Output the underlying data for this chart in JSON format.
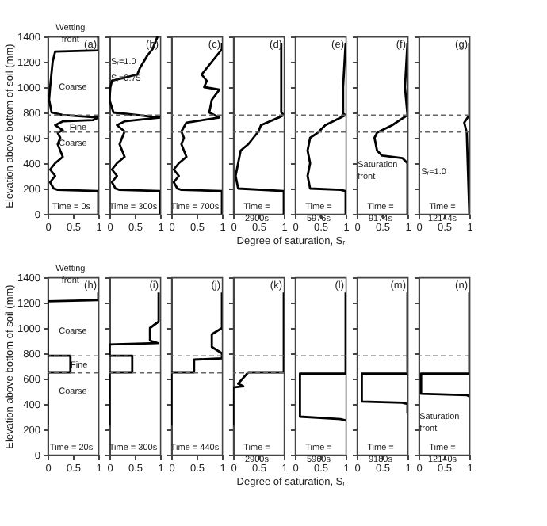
{
  "chart_data": [
    {
      "type": "line",
      "title": "(a)",
      "subtitle": "Wetting\nfront",
      "ylabel": "Elevation above bottom of soil (mm)",
      "xlim": [
        0,
        1
      ],
      "xticks": [
        0,
        0.5,
        1
      ],
      "ylim": [
        0,
        1400
      ],
      "yticks": [
        0,
        200,
        400,
        600,
        800,
        1000,
        1200,
        1400
      ],
      "series": [
        {
          "color": "#000000",
          "x": [
            1,
            1,
            0.15,
            0.1,
            0.05,
            0.03,
            0.08,
            0.3,
            1.0,
            0.9,
            0.3,
            0.15,
            0.3,
            0.2,
            0.25,
            0.2,
            0.3,
            0.15,
            0.05,
            0.15,
            0.05,
            0.12,
            0.2,
            1.0,
            1.0
          ],
          "values": [
            1400,
            1290,
            1280,
            1200,
            1000,
            900,
            800,
            780,
            760,
            740,
            730,
            700,
            660,
            640,
            600,
            550,
            450,
            400,
            350,
            300,
            250,
            200,
            190,
            180,
            0
          ]
        }
      ],
      "ref_lines": [
        {
          "axis": "y",
          "value": 780,
          "color": "#666666",
          "line_style": "dashed"
        },
        {
          "axis": "y",
          "value": 645,
          "color": "#666666",
          "line_style": "dashed"
        }
      ],
      "annotations": [
        "Time = 0s",
        "Coarse",
        "Fine",
        "Coarse"
      ]
    },
    {
      "type": "line",
      "title": "(b)",
      "tick_labels": "x",
      "xlim": [
        0,
        1
      ],
      "xticks": [
        0,
        0.5,
        1
      ],
      "ylim": [
        0,
        1400
      ],
      "yticks": [
        0,
        200,
        400,
        600,
        800,
        1000,
        1200,
        1400
      ],
      "series": [
        {
          "color": "#000000",
          "x": [
            0.95,
            0.85,
            0.75,
            0.6,
            0.55,
            0.05,
            0.02,
            0.0,
            0.08,
            1.0,
            0.3,
            0.15,
            0.3,
            0.25,
            0.2,
            0.3,
            0.15,
            0.05,
            0.15,
            0.05,
            0.12,
            0.2,
            1.0,
            1.0
          ],
          "values": [
            1400,
            1300,
            1250,
            1150,
            1100,
            1050,
            1000,
            900,
            800,
            760,
            730,
            700,
            650,
            600,
            550,
            450,
            400,
            350,
            300,
            250,
            200,
            190,
            180,
            0
          ]
        }
      ],
      "ref_lines": [
        {
          "axis": "y",
          "value": 780,
          "color": "#666666",
          "line_style": "dashed"
        },
        {
          "axis": "y",
          "value": 645,
          "color": "#666666",
          "line_style": "dashed"
        }
      ],
      "annotations": [
        "Time = 300s",
        "Sᵣ=1.0",
        "Sᵣ=0.75"
      ]
    },
    {
      "type": "line",
      "title": "(c)",
      "tick_labels": "x",
      "xlim": [
        0,
        1
      ],
      "xticks": [
        0,
        0.5,
        1
      ],
      "ylim": [
        0,
        1400
      ],
      "yticks": [
        0,
        200,
        400,
        600,
        800,
        1000,
        1200,
        1400
      ],
      "series": [
        {
          "color": "#000000",
          "x": [
            1.0,
            1.0,
            0.8,
            0.6,
            0.7,
            0.65,
            0.95,
            0.8,
            0.75,
            0.95,
            0.3,
            0.2,
            0.25,
            0.2,
            0.3,
            0.15,
            0.05,
            0.15,
            0.05,
            0.12,
            0.2,
            1.0,
            1.0
          ],
          "values": [
            1350,
            1300,
            1200,
            1100,
            1050,
            1000,
            980,
            900,
            800,
            760,
            720,
            650,
            600,
            550,
            450,
            400,
            350,
            300,
            250,
            200,
            190,
            180,
            0
          ]
        }
      ],
      "ref_lines": [
        {
          "axis": "y",
          "value": 780,
          "color": "#666666",
          "line_style": "dashed"
        },
        {
          "axis": "y",
          "value": 645,
          "color": "#666666",
          "line_style": "dashed"
        }
      ],
      "annotations": [
        "Time = 700s"
      ]
    },
    {
      "type": "line",
      "title": "(d)",
      "tick_labels": "x",
      "xlabel": "Degree of saturation, Sᵣ",
      "xlim": [
        0,
        1
      ],
      "xticks": [
        0,
        0.5,
        1
      ],
      "ylim": [
        0,
        1400
      ],
      "yticks": [
        0,
        200,
        400,
        600,
        800,
        1000,
        1200,
        1400
      ],
      "series": [
        {
          "color": "#000000",
          "x": [
            0.95,
            0.95,
            0.95,
            1.0,
            0.9,
            0.55,
            0.5,
            0.4,
            0.3,
            0.15,
            0.1,
            0.05,
            0.1,
            1.0,
            1.0
          ],
          "values": [
            1350,
            1000,
            800,
            780,
            760,
            700,
            650,
            600,
            550,
            500,
            400,
            300,
            200,
            180,
            0
          ]
        }
      ],
      "ref_lines": [
        {
          "axis": "y",
          "value": 780,
          "color": "#666666",
          "line_style": "dashed"
        },
        {
          "axis": "y",
          "value": 645,
          "color": "#666666",
          "line_style": "dashed"
        }
      ],
      "annotations": [
        "Time =\n2900s"
      ]
    },
    {
      "type": "line",
      "title": "(e)",
      "tick_labels": "x",
      "xlim": [
        0,
        1
      ],
      "xticks": [
        0,
        0.5,
        1
      ],
      "ylim": [
        0,
        1400
      ],
      "yticks": [
        0,
        200,
        400,
        600,
        800,
        1000,
        1200,
        1400
      ],
      "series": [
        {
          "color": "#000000",
          "x": [
            1.0,
            0.95,
            0.95,
            1.0,
            0.9,
            0.6,
            0.45,
            0.3,
            0.25,
            0.3,
            0.25,
            0.3,
            0.9,
            1.0,
            1.0
          ],
          "values": [
            1350,
            1000,
            790,
            780,
            760,
            700,
            640,
            600,
            500,
            400,
            300,
            200,
            190,
            180,
            0
          ]
        }
      ],
      "ref_lines": [
        {
          "axis": "y",
          "value": 780,
          "color": "#666666",
          "line_style": "dashed"
        },
        {
          "axis": "y",
          "value": 645,
          "color": "#666666",
          "line_style": "dashed"
        }
      ],
      "annotations": [
        "Time =\n5976s"
      ]
    },
    {
      "type": "line",
      "title": "(f)",
      "tick_labels": "x",
      "xlim": [
        0,
        1
      ],
      "xticks": [
        0,
        0.5,
        1
      ],
      "ylim": [
        0,
        1400
      ],
      "yticks": [
        0,
        200,
        400,
        600,
        800,
        1000,
        1200,
        1400
      ],
      "series": [
        {
          "color": "#000000",
          "x": [
            1.0,
            0.95,
            1.0,
            0.7,
            0.4,
            0.35,
            0.4,
            0.5,
            0.9,
            1.0,
            1.0
          ],
          "values": [
            1350,
            1000,
            780,
            700,
            640,
            600,
            500,
            460,
            440,
            400,
            0
          ]
        }
      ],
      "ref_lines": [
        {
          "axis": "y",
          "value": 780,
          "color": "#666666",
          "line_style": "dashed"
        },
        {
          "axis": "y",
          "value": 645,
          "color": "#666666",
          "line_style": "dashed"
        }
      ],
      "annotations": [
        "Time =\n9174s",
        "Saturation\nfront"
      ]
    },
    {
      "type": "line",
      "title": "(g)",
      "tick_labels": "x",
      "xlim": [
        0,
        1
      ],
      "xticks": [
        0,
        0.5,
        1
      ],
      "ylim": [
        0,
        1400
      ],
      "yticks": [
        0,
        200,
        400,
        600,
        800,
        1000,
        1200,
        1400
      ],
      "series": [
        {
          "color": "#000000",
          "x": [
            1.0,
            1.0,
            0.9,
            0.95,
            1.0
          ],
          "values": [
            1350,
            780,
            720,
            640,
            0
          ]
        }
      ],
      "ref_lines": [
        {
          "axis": "y",
          "value": 780,
          "color": "#666666",
          "line_style": "dashed"
        },
        {
          "axis": "y",
          "value": 645,
          "color": "#666666",
          "line_style": "dashed"
        }
      ],
      "annotations": [
        "Time =\n12144s",
        "Sᵣ=1.0"
      ]
    },
    {
      "type": "line",
      "title": "(h)",
      "subtitle": "Wetting\nfront",
      "ylabel": "Elevation above bottom of soil (mm)",
      "xlim": [
        0,
        1
      ],
      "xticks": [
        0,
        0.5,
        1
      ],
      "ylim": [
        0,
        1400
      ],
      "yticks": [
        0,
        200,
        400,
        600,
        800,
        1000,
        1200,
        1400
      ],
      "series": [
        {
          "color": "#000000",
          "x": [
            1,
            1,
            0,
            0,
            0.45,
            0.45,
            0,
            0
          ],
          "values": [
            1280,
            1220,
            1210,
            780,
            780,
            650,
            650,
            230
          ]
        }
      ],
      "ref_lines": [
        {
          "axis": "y",
          "value": 780,
          "color": "#666666",
          "line_style": "dashed"
        },
        {
          "axis": "y",
          "value": 645,
          "color": "#666666",
          "line_style": "dashed"
        }
      ],
      "annotations": [
        "Time = 20s",
        "Coarse",
        "Fine",
        "Coarse"
      ]
    },
    {
      "type": "line",
      "title": "(i)",
      "tick_labels": "x",
      "xlim": [
        0,
        1
      ],
      "xticks": [
        0,
        0.5,
        1
      ],
      "ylim": [
        0,
        1400
      ],
      "yticks": [
        0,
        200,
        400,
        600,
        800,
        1000,
        1200,
        1400
      ],
      "series": [
        {
          "color": "#000000",
          "x": [
            0.97,
            0.97,
            0.8,
            0.8,
            0.95,
            0,
            0,
            0.45,
            0.45,
            0,
            0
          ],
          "values": [
            1280,
            1050,
            1000,
            900,
            880,
            870,
            780,
            780,
            650,
            650,
            230
          ]
        }
      ],
      "ref_lines": [
        {
          "axis": "y",
          "value": 780,
          "color": "#666666",
          "line_style": "dashed"
        },
        {
          "axis": "y",
          "value": 645,
          "color": "#666666",
          "line_style": "dashed"
        }
      ],
      "annotations": [
        "Time = 300s"
      ]
    },
    {
      "type": "line",
      "title": "(j)",
      "tick_labels": "x",
      "xlim": [
        0,
        1
      ],
      "xticks": [
        0,
        0.5,
        1
      ],
      "ylim": [
        0,
        1400
      ],
      "yticks": [
        0,
        200,
        400,
        600,
        800,
        1000,
        1200,
        1400
      ],
      "series": [
        {
          "color": "#000000",
          "x": [
            1,
            1,
            0.8,
            0.8,
            1.0,
            1,
            0.45,
            0.45,
            0,
            0
          ],
          "values": [
            1280,
            1000,
            950,
            850,
            800,
            760,
            750,
            650,
            650,
            230
          ]
        }
      ],
      "ref_lines": [
        {
          "axis": "y",
          "value": 780,
          "color": "#666666",
          "line_style": "dashed"
        },
        {
          "axis": "y",
          "value": 645,
          "color": "#666666",
          "line_style": "dashed"
        }
      ],
      "annotations": [
        "Time = 440s"
      ]
    },
    {
      "type": "line",
      "title": "(k)",
      "tick_labels": "x",
      "xlabel": "Degree of saturation, Sᵣ",
      "xlim": [
        0,
        1
      ],
      "xticks": [
        0,
        0.5,
        1
      ],
      "ylim": [
        0,
        1400
      ],
      "yticks": [
        0,
        200,
        400,
        600,
        800,
        1000,
        1200,
        1400
      ],
      "series": [
        {
          "color": "#000000",
          "x": [
            1,
            1,
            0.3,
            0.1,
            0.2,
            0,
            0
          ],
          "values": [
            1280,
            650,
            650,
            560,
            540,
            530,
            230
          ]
        }
      ],
      "ref_lines": [
        {
          "axis": "y",
          "value": 780,
          "color": "#666666",
          "line_style": "dashed"
        },
        {
          "axis": "y",
          "value": 645,
          "color": "#666666",
          "line_style": "dashed"
        }
      ],
      "annotations": [
        "Time =\n2900s"
      ]
    },
    {
      "type": "line",
      "title": "(l)",
      "tick_labels": "x",
      "xlim": [
        0,
        1
      ],
      "xticks": [
        0,
        0.5,
        1
      ],
      "ylim": [
        0,
        1400
      ],
      "yticks": [
        0,
        200,
        400,
        600,
        800,
        1000,
        1200,
        1400
      ],
      "series": [
        {
          "color": "#000000",
          "x": [
            1,
            1,
            0.1,
            0.1,
            0.9,
            1
          ],
          "values": [
            1280,
            640,
            640,
            300,
            280,
            270
          ]
        }
      ],
      "ref_lines": [
        {
          "axis": "y",
          "value": 780,
          "color": "#666666",
          "line_style": "dashed"
        }
      ],
      "annotations": [
        "Time =\n5960s"
      ]
    },
    {
      "type": "line",
      "title": "(m)",
      "tick_labels": "x",
      "xlim": [
        0,
        1
      ],
      "xticks": [
        0,
        0.5,
        1
      ],
      "ylim": [
        0,
        1400
      ],
      "yticks": [
        0,
        200,
        400,
        600,
        800,
        1000,
        1200,
        1400
      ],
      "series": [
        {
          "color": "#000000",
          "x": [
            1,
            1,
            0.1,
            0.1,
            0.9,
            1,
            1
          ],
          "values": [
            1280,
            640,
            640,
            420,
            410,
            400,
            330
          ]
        }
      ],
      "ref_lines": [
        {
          "axis": "y",
          "value": 780,
          "color": "#666666",
          "line_style": "dashed"
        }
      ],
      "annotations": [
        "Time =\n9180s"
      ]
    },
    {
      "type": "line",
      "title": "(n)",
      "tick_labels": "x",
      "xlim": [
        0,
        1
      ],
      "xticks": [
        0,
        0.5,
        1
      ],
      "ylim": [
        0,
        1400
      ],
      "yticks": [
        0,
        200,
        400,
        600,
        800,
        1000,
        1200,
        1400
      ],
      "series": [
        {
          "color": "#000000",
          "x": [
            1,
            1,
            0.05,
            0.05,
            0.95,
            1
          ],
          "values": [
            1280,
            640,
            640,
            480,
            470,
            460
          ]
        }
      ],
      "ref_lines": [
        {
          "axis": "y",
          "value": 780,
          "color": "#666666",
          "line_style": "dashed"
        }
      ],
      "annotations": [
        "Time =\n12140s",
        "Saturation\nfront"
      ]
    }
  ]
}
